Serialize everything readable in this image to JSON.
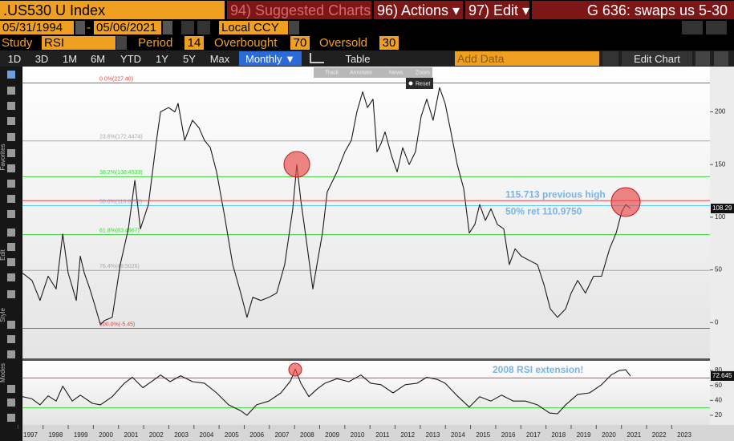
{
  "header": {
    "ticker": ".US530 U Index",
    "suggested": "94) Suggested Charts",
    "actions": "96) Actions ▾",
    "edit": "97) Edit ▾",
    "function": "G 636: swaps us 5-30"
  },
  "dates": {
    "start": "05/31/1994",
    "separator": "-",
    "end": "05/06/2021",
    "currency": "Local CCY"
  },
  "study": {
    "label": "Study",
    "name": "RSI",
    "period_label": "Period",
    "period": 14,
    "overbought_label": "Overbought",
    "overbought": 70,
    "oversold_label": "Oversold",
    "oversold": 30
  },
  "toolbar": {
    "ranges": [
      "1D",
      "3D",
      "1M",
      "6M",
      "YTD",
      "1Y",
      "5Y",
      "Max"
    ],
    "frequency": "Monthly ▼",
    "table": "Table",
    "add_data": "Add Data",
    "edit_chart": "Edit Chart"
  },
  "chart_tools": [
    "Track",
    "Annotate",
    "News",
    "Zoom",
    "Reset"
  ],
  "side_labels": [
    "Favorites",
    "Edit",
    "Style",
    "Modes"
  ],
  "chart_data": [
    {
      "type": "line",
      "color": "#1a1a1a",
      "x": [
        1997.18,
        1997.56,
        1997.88,
        1998.2,
        1998.52,
        1998.78,
        1999,
        1999.32,
        1999.48,
        1999.64,
        1999.86,
        2000.05,
        2000.28,
        2000.44,
        2000.75,
        2001.07,
        2001.39,
        2001.65,
        2001.87,
        2002.19,
        2002.51,
        2002.67,
        2002.99,
        2003.24,
        2003.37,
        2003.63,
        2003.94,
        2004.2,
        2004.42,
        2004.65,
        2004.9,
        2005.22,
        2005.54,
        2005.86,
        2006.11,
        2006.34,
        2006.66,
        2006.98,
        2007.29,
        2007.61,
        2007.93,
        2008.09,
        2008.25,
        2008.47,
        2008.73,
        2008.89,
        2009.11,
        2009.3,
        2009.69,
        2010,
        2010.26,
        2010.48,
        2010.71,
        2010.9,
        2011.12,
        2011.28,
        2011.44,
        2011.6,
        2011.86,
        2012.08,
        2012.3,
        2012.56,
        2012.81,
        2013.04,
        2013.26,
        2013.51,
        2013.77,
        2013.99,
        2014.22,
        2014.47,
        2014.73,
        2014.95,
        2015.17,
        2015.36,
        2015.59,
        2015.81,
        2016.07,
        2016.32,
        2016.54,
        2016.77,
        2017.02,
        2017.34,
        2017.66,
        2017.92,
        2018.17,
        2018.46,
        2018.78,
        2019,
        2019.26,
        2019.57,
        2019.89,
        2020.21,
        2020.53,
        2020.79,
        2021.01,
        2021.17,
        2021.36
      ],
      "values": [
        47,
        40,
        21,
        44,
        32,
        84,
        47,
        21,
        63,
        47,
        32,
        17,
        -2,
        2,
        5,
        55,
        89,
        135,
        89,
        112,
        173,
        200,
        204,
        200,
        208,
        173,
        192,
        185,
        173,
        166,
        143,
        101,
        55,
        28,
        5,
        24,
        21,
        24,
        28,
        55,
        108,
        150,
        116,
        78,
        32,
        55,
        85,
        124,
        143,
        162,
        173,
        200,
        219,
        204,
        212,
        162,
        170,
        181,
        158,
        143,
        166,
        150,
        162,
        196,
        212,
        192,
        223,
        208,
        181,
        150,
        127,
        85,
        93,
        112,
        97,
        108,
        93,
        89,
        55,
        70,
        63,
        59,
        55,
        36,
        13,
        5,
        13,
        28,
        40,
        28,
        44,
        44,
        70,
        85,
        105,
        112,
        108.29
      ],
      "xlim": [
        1997.18,
        2024.52
      ],
      "ylim": [
        -34,
        243
      ],
      "yticks": [
        0,
        50,
        100,
        150,
        200
      ],
      "fib_levels": [
        {
          "value": 227.4,
          "label": "0.0%(227.40)",
          "color": "#e04848"
        },
        {
          "value": 172.4474,
          "label": "23.6%(172.4474)",
          "color": "#a8a8a8"
        },
        {
          "value": 138.4533,
          "label": "38.2%(138.4533)",
          "color": "#3ed63e"
        },
        {
          "value": 110.975,
          "label": "50.0%(110.9750)",
          "color": "#5cc8f0"
        },
        {
          "value": 83.4967,
          "label": "61.8%(83.4967)",
          "color": "#3ed63e"
        },
        {
          "value": 49.5026,
          "label": "76.4%(49.5026)",
          "color": "#a8a8a8"
        },
        {
          "value": -5.45,
          "label": "100.0%(-5.45)",
          "color": "#e04848"
        }
      ],
      "annotations": [
        {
          "text": "115.713 previous high",
          "value": 115.713,
          "line_color": "#e04848"
        },
        {
          "text": "50% ret 110.9750",
          "value": 110.975
        }
      ],
      "last_value": 108.29
    },
    {
      "type": "line",
      "color": "#1a1a1a",
      "x": [
        1997.18,
        1997.56,
        1997.88,
        1998.2,
        1998.52,
        1998.78,
        1999.16,
        1999.48,
        1999.96,
        2000.28,
        2000.75,
        2001.23,
        2001.55,
        2001.97,
        2002.35,
        2002.67,
        2003.05,
        2003.47,
        2003.94,
        2004.42,
        2004.9,
        2005.38,
        2005.86,
        2006.11,
        2006.49,
        2006.98,
        2007.46,
        2007.84,
        2008.03,
        2008.25,
        2008.57,
        2008.89,
        2009.21,
        2009.69,
        2010.16,
        2010.64,
        2011.03,
        2011.44,
        2011.92,
        2012.4,
        2012.88,
        2013.26,
        2013.68,
        2013.99,
        2014.47,
        2014.95,
        2015.36,
        2015.81,
        2016.23,
        2016.7,
        2017.18,
        2017.66,
        2018.14,
        2018.46,
        2018.78,
        2019.26,
        2019.73,
        2020.21,
        2020.59,
        2020.91,
        2021.17,
        2021.36
      ],
      "values": [
        45,
        42,
        34,
        46,
        39,
        59,
        39,
        47,
        36,
        34,
        45,
        63,
        71,
        57,
        66,
        74,
        65,
        73,
        65,
        63,
        50,
        34,
        26,
        20,
        34,
        39,
        50,
        66,
        82,
        63,
        45,
        55,
        63,
        69,
        65,
        74,
        63,
        61,
        50,
        61,
        63,
        71,
        68,
        63,
        46,
        31,
        45,
        39,
        47,
        39,
        39,
        34,
        23,
        22,
        34,
        48,
        50,
        61,
        74,
        80,
        81,
        72.645
      ],
      "xlim": [
        1997.18,
        2024.52
      ],
      "ylim": [
        7,
        93
      ],
      "yticks": [
        20,
        40,
        60,
        80
      ],
      "xticks": [
        1997,
        1998,
        1999,
        2000,
        2001,
        2002,
        2003,
        2004,
        2005,
        2006,
        2007,
        2008,
        2009,
        2010,
        2011,
        2012,
        2013,
        2014,
        2015,
        2016,
        2017,
        2018,
        2019,
        2020,
        2021,
        2022,
        2023
      ],
      "annotation": "2008 RSI extension!",
      "last_value": 72.645
    }
  ]
}
